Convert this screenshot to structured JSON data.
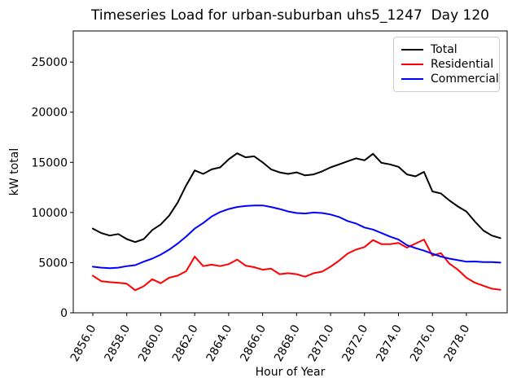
{
  "chart_data": {
    "type": "line",
    "title": "Timeseries Load for urban-suburban uhs5_1247  Day 120",
    "xlabel": "Hour of Year",
    "ylabel": "kW total",
    "xlim": [
      2854.85,
      2880.4
    ],
    "ylim": [
      0,
      28100
    ],
    "grid": false,
    "legend_position": "upper right",
    "x_ticks": [
      2856,
      2858,
      2860,
      2862,
      2864,
      2866,
      2868,
      2870,
      2872,
      2874,
      2876,
      2878
    ],
    "x_tick_labels": [
      "2856.0",
      "2858.0",
      "2860.0",
      "2862.0",
      "2864.0",
      "2866.0",
      "2868.0",
      "2870.0",
      "2872.0",
      "2874.0",
      "2876.0",
      "2878.0"
    ],
    "y_ticks": [
      0,
      5000,
      10000,
      15000,
      20000,
      25000
    ],
    "y_tick_labels": [
      "0",
      "5000",
      "10000",
      "15000",
      "20000",
      "25000"
    ],
    "x": [
      2856.0,
      2856.5,
      2857.0,
      2857.5,
      2858.0,
      2858.5,
      2859.0,
      2859.5,
      2860.0,
      2860.5,
      2861.0,
      2861.5,
      2862.0,
      2862.5,
      2863.0,
      2863.5,
      2864.0,
      2864.5,
      2865.0,
      2865.5,
      2866.0,
      2866.5,
      2867.0,
      2867.5,
      2868.0,
      2868.5,
      2869.0,
      2869.5,
      2870.0,
      2870.5,
      2871.0,
      2871.5,
      2872.0,
      2872.5,
      2873.0,
      2873.5,
      2874.0,
      2874.5,
      2875.0,
      2875.5,
      2876.0,
      2876.5,
      2877.0,
      2877.5,
      2878.0,
      2878.5,
      2879.0,
      2879.5,
      2880.0
    ],
    "series": [
      {
        "name": "Total",
        "color": "#000000",
        "values": [
          8400,
          7950,
          7700,
          7850,
          7350,
          7050,
          7350,
          8250,
          8800,
          9700,
          11000,
          12700,
          14200,
          13850,
          14300,
          14500,
          15300,
          15900,
          15500,
          15600,
          15000,
          14300,
          14000,
          13850,
          14000,
          13700,
          13800,
          14100,
          14500,
          14800,
          15100,
          15400,
          15200,
          15850,
          14950,
          14800,
          14550,
          13800,
          13600,
          14050,
          12100,
          11900,
          11200,
          10600,
          10100,
          9100,
          8200,
          7700,
          7450
        ]
      },
      {
        "name": "Residential",
        "color": "#ff0000",
        "values": [
          3700,
          3150,
          3050,
          3000,
          2900,
          2250,
          2650,
          3350,
          2950,
          3500,
          3700,
          4150,
          5600,
          4650,
          4800,
          4650,
          4850,
          5300,
          4700,
          4550,
          4300,
          4400,
          3850,
          3950,
          3850,
          3600,
          3950,
          4100,
          4600,
          5200,
          5900,
          6300,
          6550,
          7250,
          6850,
          6850,
          6970,
          6500,
          6900,
          7300,
          5700,
          5950,
          4900,
          4300,
          3500,
          3000,
          2700,
          2400,
          2300
        ]
      },
      {
        "name": "Commercial",
        "color": "#0000ff",
        "values": [
          4600,
          4500,
          4450,
          4500,
          4650,
          4750,
          5100,
          5400,
          5800,
          6300,
          6900,
          7600,
          8400,
          8950,
          9600,
          10050,
          10350,
          10550,
          10650,
          10700,
          10700,
          10550,
          10350,
          10100,
          9950,
          9900,
          10000,
          9950,
          9800,
          9550,
          9150,
          8900,
          8500,
          8300,
          7950,
          7600,
          7300,
          6750,
          6450,
          6200,
          5900,
          5600,
          5400,
          5250,
          5100,
          5120,
          5050,
          5050,
          5000
        ]
      }
    ]
  }
}
